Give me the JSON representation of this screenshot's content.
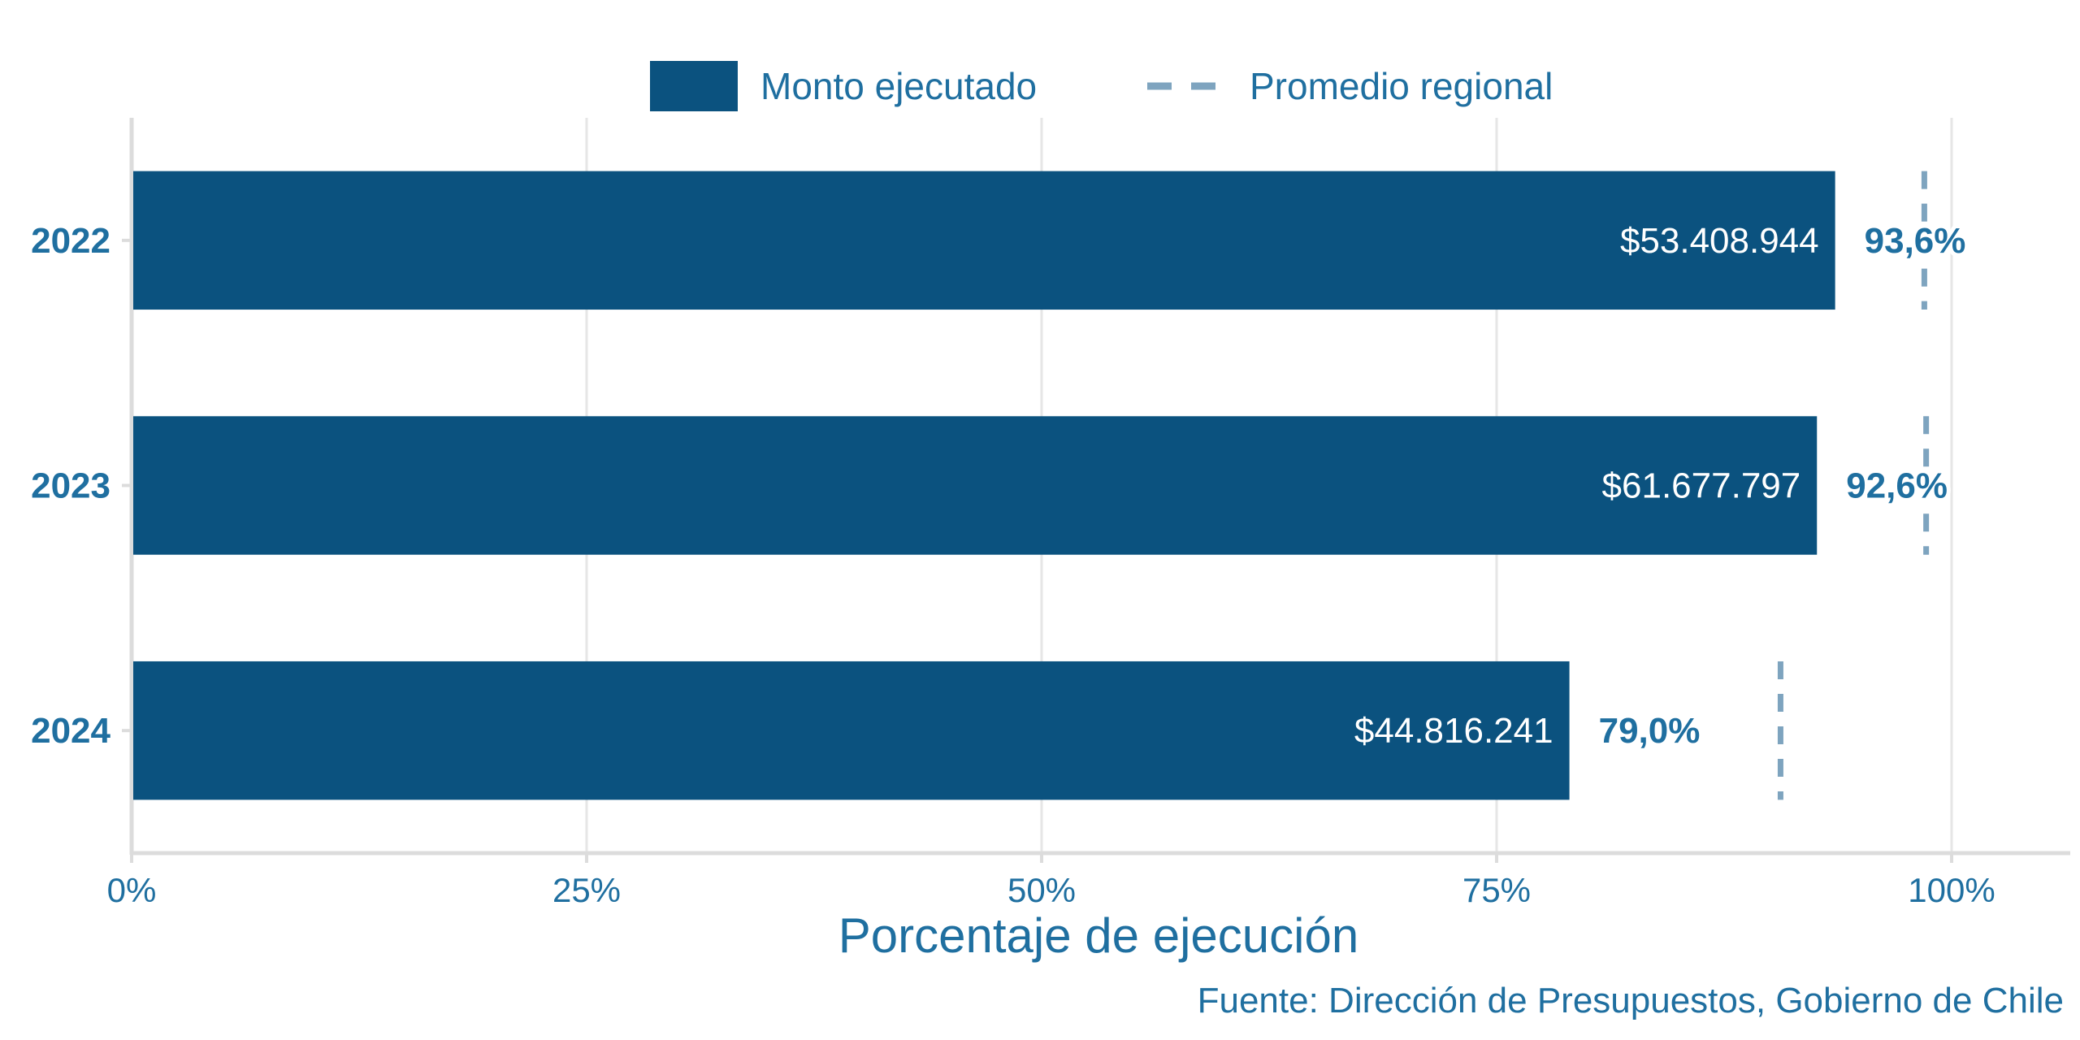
{
  "chart_data": {
    "type": "bar",
    "orientation": "horizontal",
    "categories": [
      "2022",
      "2023",
      "2024"
    ],
    "series": [
      {
        "name": "Monto ejecutado",
        "values": [
          93.6,
          92.6,
          79.0
        ],
        "value_labels": [
          "$53.408.944",
          "$61.677.797",
          "$44.816.241"
        ],
        "percent_labels": [
          "93,6%",
          "92,6%",
          "79,0%"
        ],
        "color": "#0b527f"
      },
      {
        "name": "Promedio regional",
        "style": "dashed",
        "values": [
          98.5,
          98.6,
          90.6
        ],
        "color": "#7ea4bf"
      }
    ],
    "xlabel": "Porcentaje de ejecución",
    "xlim": [
      0,
      106
    ],
    "xticks": [
      0,
      25,
      50,
      75,
      100
    ],
    "xtick_labels": [
      "0%",
      "25%",
      "50%",
      "75%",
      "100%"
    ],
    "grid": "vertical",
    "legend": "top",
    "source": "Fuente: Dirección de Presupuestos, Gobierno de Chile"
  }
}
